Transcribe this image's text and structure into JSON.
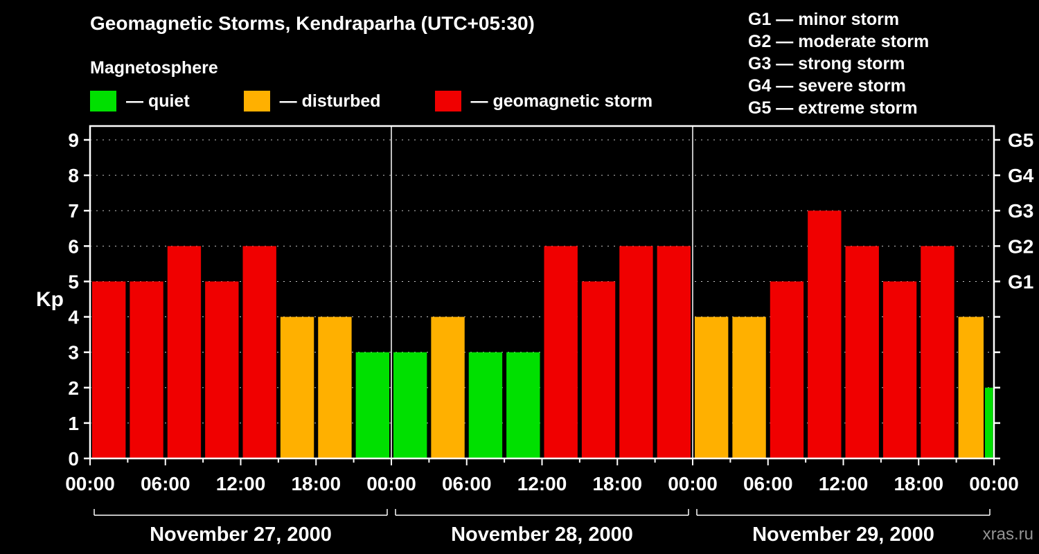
{
  "header": {
    "title": "Geomagnetic Storms, Kendraparha (UTC+05:30)",
    "subtitle": "Magnetosphere"
  },
  "kp_legend": {
    "items": [
      {
        "name": "quiet",
        "label": "— quiet",
        "color": "#00e000"
      },
      {
        "name": "disturbed",
        "label": "— disturbed",
        "color": "#ffb000"
      },
      {
        "name": "storm",
        "label": "— geomagnetic storm",
        "color": "#f00000"
      }
    ]
  },
  "g_legend": {
    "items": [
      {
        "label": "G1 — minor storm"
      },
      {
        "label": "G2 — moderate storm"
      },
      {
        "label": "G3 — strong storm"
      },
      {
        "label": "G4 — severe storm"
      },
      {
        "label": "G5 — extreme storm"
      }
    ]
  },
  "watermark": "xras.ru",
  "chart_data": {
    "type": "bar",
    "title": "Geomagnetic Storms, Kendraparha (UTC+05:30)",
    "ylabel": "Kp",
    "ylim": [
      0,
      9
    ],
    "yticks": [
      0,
      1,
      2,
      3,
      4,
      5,
      6,
      7,
      8,
      9
    ],
    "right_axis": [
      {
        "kp": 5,
        "label": "G1"
      },
      {
        "kp": 6,
        "label": "G2"
      },
      {
        "kp": 7,
        "label": "G3"
      },
      {
        "kp": 8,
        "label": "G4"
      },
      {
        "kp": 9,
        "label": "G5"
      }
    ],
    "interval_hours": 3,
    "x_tick_labels": [
      "00:00",
      "06:00",
      "12:00",
      "18:00"
    ],
    "closing_tick_label": "00:00",
    "days": [
      {
        "date": "November 27, 2000",
        "kp_values": [
          5,
          5,
          6,
          5,
          6,
          4,
          4,
          3
        ]
      },
      {
        "date": "November 28, 2000",
        "kp_values": [
          3,
          4,
          3,
          3,
          6,
          5,
          6,
          6
        ]
      },
      {
        "date": "November 29, 2000",
        "kp_values": [
          4,
          4,
          5,
          7,
          6,
          5,
          6,
          4
        ]
      }
    ],
    "trailing_partial_bar": {
      "kp": 2
    },
    "color_rule": {
      "quiet_max_kp": 3,
      "disturbed_max_kp": 4,
      "storm_min_kp": 5
    },
    "colors": {
      "quiet": "#00e000",
      "disturbed": "#ffb000",
      "storm": "#f00000",
      "axis": "#ffffff",
      "grid": "#c8c8c8",
      "background": "#000000"
    },
    "grid": "dashed-horizontal",
    "legend_position": "top-left"
  }
}
